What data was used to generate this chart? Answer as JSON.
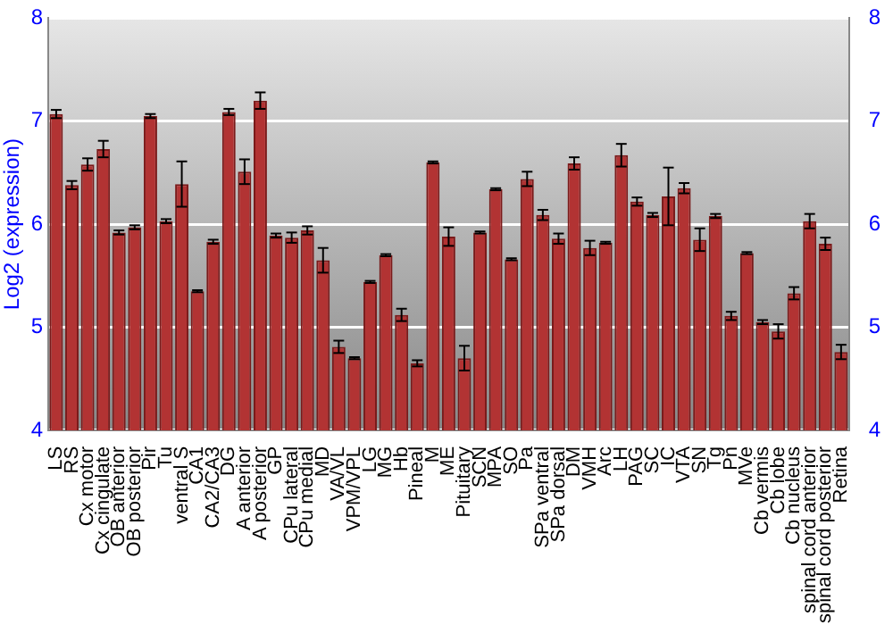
{
  "chart_data": {
    "type": "bar",
    "ylabel": "Log2 (expression)",
    "categories": [
      "LS",
      "RS",
      "Cx motor",
      "Cx cingulate",
      "OB anterior",
      "OB posterior",
      "Pir",
      "Tu",
      "ventral S",
      "CA1",
      "CA2/CA3",
      "DG",
      "A anterior",
      "A posterior",
      "GP",
      "CPu lateral",
      "CPu medial",
      "MD",
      "VA/VL",
      "VPM/VPL",
      "LG",
      "MG",
      "Hb",
      "Pineal",
      "M",
      "ME",
      "Pituitary",
      "SCN",
      "MPA",
      "SO",
      "Pa",
      "SPa ventral",
      "SPa dorsal",
      "DM",
      "VMH",
      "Arc",
      "LH",
      "PAG",
      "SC",
      "IC",
      "VTA",
      "SN",
      "Tg",
      "Pn",
      "MVe",
      "Cb vermis",
      "Cb lobe",
      "Cb nucleus",
      "spinal cord anterior",
      "spinal cord posterior",
      "Retina"
    ],
    "values": [
      7.07,
      6.38,
      6.58,
      6.73,
      5.92,
      5.97,
      7.05,
      6.03,
      6.39,
      5.35,
      5.83,
      7.09,
      6.51,
      7.2,
      5.89,
      5.87,
      5.94,
      5.65,
      4.81,
      4.7,
      5.44,
      5.7,
      5.12,
      4.65,
      6.6,
      5.88,
      4.7,
      5.92,
      6.34,
      5.66,
      6.44,
      6.09,
      5.86,
      6.59,
      5.77,
      5.82,
      6.67,
      6.22,
      6.09,
      6.27,
      6.35,
      5.85,
      6.08,
      5.11,
      5.72,
      5.05,
      4.96,
      5.33,
      6.03,
      5.81,
      4.76
    ],
    "errors": [
      0.04,
      0.04,
      0.06,
      0.08,
      0.02,
      0.02,
      0.02,
      0.02,
      0.22,
      0.01,
      0.02,
      0.03,
      0.12,
      0.08,
      0.02,
      0.05,
      0.04,
      0.12,
      0.06,
      0.01,
      0.01,
      0.01,
      0.06,
      0.03,
      0.01,
      0.09,
      0.12,
      0.01,
      0.01,
      0.01,
      0.07,
      0.05,
      0.05,
      0.06,
      0.07,
      0.01,
      0.11,
      0.04,
      0.02,
      0.28,
      0.05,
      0.11,
      0.02,
      0.04,
      0.01,
      0.02,
      0.07,
      0.06,
      0.07,
      0.06,
      0.07
    ],
    "color": "#b23333",
    "ylim": [
      4,
      8
    ],
    "yticks": [
      4,
      5,
      6,
      7,
      8
    ],
    "y2lim": [
      4,
      8
    ],
    "y2ticks": [
      4,
      5,
      6,
      7,
      8
    ],
    "grid": "y",
    "legend": false
  }
}
